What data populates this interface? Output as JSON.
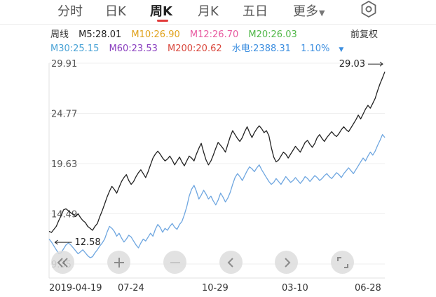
{
  "tabs": [
    {
      "label": "分时",
      "active": false
    },
    {
      "label": "日K",
      "active": false
    },
    {
      "label": "周K",
      "active": true
    },
    {
      "label": "月K",
      "active": false
    },
    {
      "label": "五日",
      "active": false
    },
    {
      "label": "更多",
      "active": false
    }
  ],
  "period_label": "周线",
  "ma": [
    {
      "label": "M5:28.01",
      "color": "#222222"
    },
    {
      "label": "M10:26.90",
      "color": "#e0a21b"
    },
    {
      "label": "M12:26.70",
      "color": "#e85aa0"
    },
    {
      "label": "M20:26.03",
      "color": "#52b84a"
    },
    {
      "label": "M30:25.15",
      "color": "#4aa3d6"
    },
    {
      "label": "M60:23.53",
      "color": "#8a3fbf"
    },
    {
      "label": "M200:20.62",
      "color": "#d9473c"
    }
  ],
  "compare": {
    "label": "水电:2388.31",
    "pct": "1.10%",
    "color": "#3d8fe0"
  },
  "adjust_label": "前复权",
  "icons": [
    "settings-icon",
    "double-chevron-left-icon",
    "plus-icon",
    "minus-icon",
    "chevron-left-icon",
    "chevron-right-icon",
    "expand-icon",
    "caret-down-icon"
  ],
  "chart_data": {
    "type": "line",
    "y_ticks": [
      "29.91",
      "24.77",
      "19.63",
      "14.49",
      "9.35"
    ],
    "ylim": [
      9.35,
      29.91
    ],
    "x_labels": [
      "2019-04-19",
      "07-24",
      "10-29",
      "03-10",
      "06-28"
    ],
    "annotations": {
      "max_label": "29.03",
      "min_label": "12.58"
    },
    "grid": true,
    "series": [
      {
        "color": "#222222",
        "values": [
          12.7,
          12.58,
          12.9,
          13.2,
          13.8,
          14.3,
          14.9,
          15.0,
          14.8,
          14.6,
          14.4,
          14.2,
          14.5,
          14.1,
          13.8,
          13.6,
          13.2,
          13.0,
          12.8,
          13.2,
          13.5,
          14.2,
          14.8,
          15.5,
          16.2,
          16.8,
          17.3,
          17.0,
          16.6,
          17.2,
          17.8,
          18.2,
          18.5,
          17.9,
          17.5,
          17.8,
          18.3,
          18.7,
          19.0,
          18.6,
          18.2,
          18.8,
          19.5,
          20.2,
          20.6,
          20.9,
          20.6,
          20.2,
          19.9,
          20.1,
          20.4,
          20.0,
          19.5,
          19.9,
          20.3,
          19.8,
          19.4,
          19.9,
          20.4,
          20.2,
          19.9,
          20.6,
          21.2,
          21.7,
          20.8,
          20.0,
          19.5,
          19.9,
          20.5,
          21.2,
          21.8,
          21.5,
          21.2,
          20.8,
          21.6,
          22.4,
          23.0,
          22.6,
          22.2,
          21.9,
          22.3,
          22.9,
          23.4,
          22.8,
          22.3,
          22.8,
          23.2,
          23.5,
          23.2,
          22.8,
          23.0,
          22.5,
          21.3,
          20.3,
          19.8,
          20.0,
          20.4,
          20.8,
          20.6,
          20.2,
          20.6,
          21.0,
          21.4,
          21.1,
          20.8,
          21.3,
          21.8,
          22.0,
          21.6,
          21.3,
          21.7,
          22.3,
          22.6,
          22.2,
          21.9,
          22.3,
          22.6,
          22.9,
          22.6,
          22.4,
          22.7,
          23.1,
          23.4,
          23.1,
          22.9,
          23.3,
          23.7,
          24.1,
          24.6,
          24.2,
          24.7,
          25.2,
          25.6,
          25.3,
          25.8,
          26.3,
          27.1,
          27.8,
          28.4,
          29.03
        ]
      },
      {
        "color": "#6ea6e0",
        "values": [
          11.9,
          11.6,
          11.2,
          10.8,
          10.4,
          10.5,
          10.9,
          11.3,
          11.5,
          11.3,
          11.0,
          10.7,
          10.4,
          10.6,
          10.8,
          10.5,
          10.2,
          10.0,
          10.1,
          10.5,
          10.8,
          11.2,
          11.5,
          11.9,
          12.6,
          13.2,
          13.0,
          12.7,
          12.2,
          12.5,
          12.0,
          11.6,
          11.9,
          12.3,
          12.1,
          11.7,
          11.3,
          11.0,
          11.5,
          11.9,
          11.7,
          12.1,
          12.5,
          12.2,
          12.9,
          13.4,
          13.1,
          12.6,
          13.0,
          12.8,
          13.2,
          13.5,
          13.1,
          12.9,
          13.4,
          13.7,
          14.4,
          15.2,
          16.3,
          17.0,
          17.4,
          16.8,
          16.0,
          16.4,
          16.9,
          16.5,
          16.0,
          16.3,
          15.8,
          15.4,
          15.9,
          16.6,
          16.2,
          15.7,
          16.1,
          16.7,
          17.5,
          18.2,
          18.6,
          18.3,
          17.9,
          18.4,
          18.9,
          19.3,
          19.1,
          18.8,
          19.2,
          19.5,
          19.0,
          18.6,
          18.2,
          17.8,
          17.5,
          17.7,
          18.1,
          17.8,
          17.5,
          17.9,
          18.3,
          18.0,
          17.7,
          17.9,
          18.2,
          17.9,
          17.6,
          17.9,
          18.3,
          18.1,
          17.8,
          18.1,
          18.4,
          18.2,
          17.9,
          18.1,
          18.4,
          18.6,
          18.3,
          18.1,
          18.4,
          18.7,
          18.5,
          18.2,
          18.6,
          18.9,
          19.2,
          18.9,
          18.6,
          19.0,
          19.4,
          19.8,
          20.2,
          19.9,
          20.4,
          20.8,
          20.5,
          20.9,
          21.5,
          22.0,
          22.6,
          22.3
        ]
      }
    ]
  }
}
